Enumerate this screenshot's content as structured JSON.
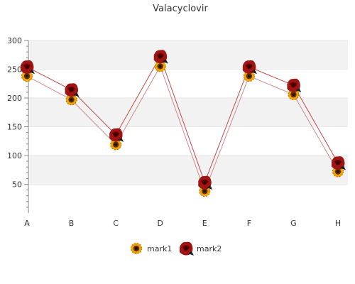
{
  "chart_data": {
    "type": "line",
    "title": "Valacyclovir",
    "xlabel": "",
    "ylabel": "",
    "categories": [
      "A",
      "B",
      "C",
      "D",
      "E",
      "F",
      "G",
      "H"
    ],
    "ylim": [
      0,
      300
    ],
    "yticks": [
      50,
      100,
      150,
      200,
      250,
      300
    ],
    "grid": true,
    "legend_position": "bottom",
    "series": [
      {
        "name": "mark1",
        "values": [
          238,
          197,
          119,
          255,
          38,
          238,
          206,
          72
        ],
        "color": "#d08a8a",
        "marker": "sunflower-icon"
      },
      {
        "name": "mark2",
        "values": [
          254,
          214,
          136,
          272,
          53,
          254,
          222,
          87
        ],
        "color": "#c04848",
        "marker": "red-rose-icon"
      }
    ],
    "colors": {
      "band": "#f2f2f2",
      "axis": "#888888"
    }
  }
}
